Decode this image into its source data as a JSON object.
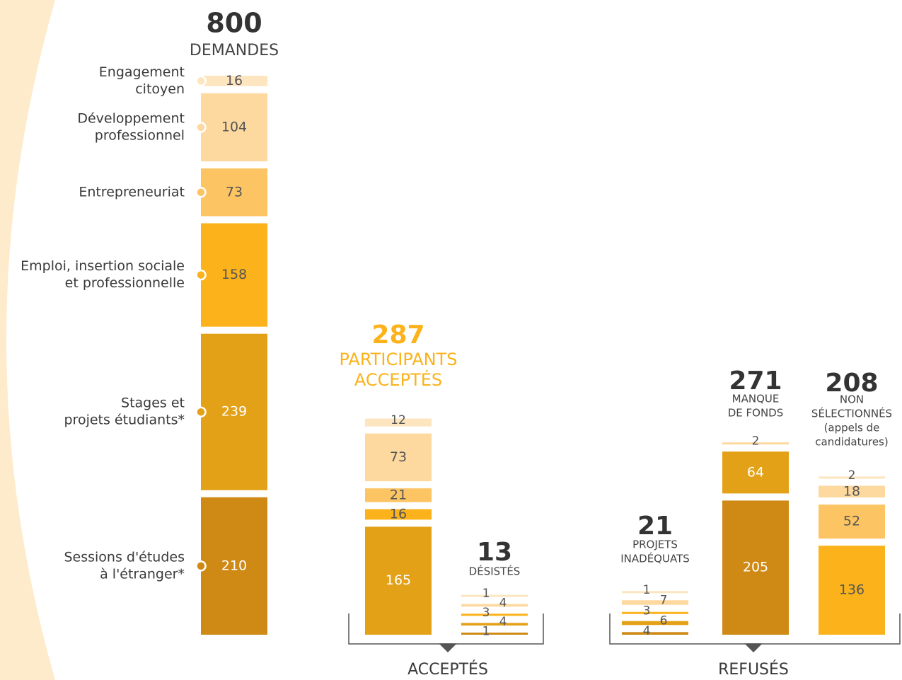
{
  "chart_data": {
    "type": "stacked-breakdown",
    "categories": [
      [
        "Engagement",
        "citoyen"
      ],
      [
        "Développement",
        "professionnel"
      ],
      [
        "Entrepreneuriat"
      ],
      [
        "Emploi, insertion sociale",
        "et professionnelle"
      ],
      [
        "Stages et",
        "projets étudiants*"
      ],
      [
        "Sessions d'études",
        "à l'étranger*"
      ]
    ],
    "colors": [
      "#fde5c0",
      "#fdd9a0",
      "#fcc463",
      "#fbb21b",
      "#e3a118",
      "#cf8a16"
    ],
    "highlight_color": "#fbb21b",
    "columns": [
      {
        "total": 800,
        "label": [
          "DEMANDES"
        ],
        "values": [
          16,
          104,
          73,
          158,
          239,
          210
        ]
      },
      {
        "total": 287,
        "label": [
          "PARTICIPANTS",
          "ACCEPTÉS"
        ],
        "values": [
          12,
          73,
          21,
          16,
          165,
          null
        ],
        "highlight": true
      },
      {
        "total": 13,
        "label": [
          "DÉSISTÉS"
        ],
        "values": [
          1,
          4,
          null,
          3,
          4,
          1
        ]
      },
      {
        "total": 21,
        "label": [
          "PROJETS",
          "INADÉQUATS"
        ],
        "values": [
          1,
          7,
          null,
          3,
          6,
          4
        ]
      },
      {
        "total": 271,
        "label": [
          "MANQUE",
          "DE FONDS"
        ],
        "values": [
          null,
          2,
          null,
          null,
          64,
          205
        ]
      },
      {
        "total": 208,
        "label": [
          "NON",
          "SÉLECTIONNÉS",
          "(appels de",
          "candidatures)"
        ],
        "values": [
          2,
          18,
          52,
          136,
          null,
          null
        ]
      }
    ],
    "groups": [
      {
        "label": "ACCEPTÉS"
      },
      {
        "label": "REFUSÉS"
      }
    ]
  }
}
